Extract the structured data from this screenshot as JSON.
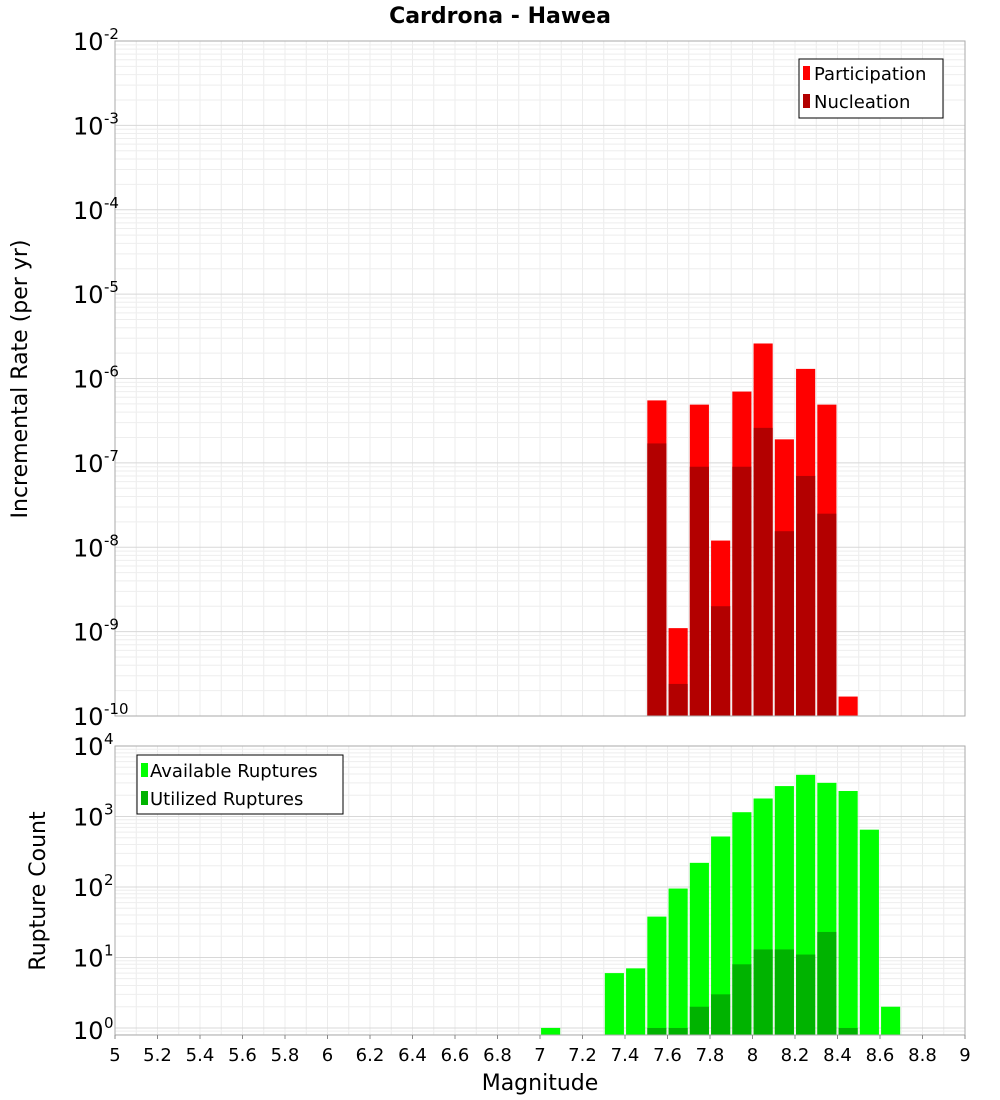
{
  "chart_data": [
    {
      "type": "bar",
      "title": "Cardrona - Hawea",
      "xlabel": "Magnitude",
      "ylabel": "Incremental Rate (per yr)",
      "yscale": "log",
      "xlim": [
        5,
        9
      ],
      "ylim_exponents": [
        -10,
        -2
      ],
      "ytick_base": "10",
      "ytick_exponents": [
        "-10",
        "-9",
        "-8",
        "-7",
        "-6",
        "-5",
        "-4",
        "-3",
        "-2"
      ],
      "legend_position": "top-right",
      "grid": true,
      "series": [
        {
          "name": "Participation",
          "color": "#ff0000",
          "x": [
            7.55,
            7.65,
            7.75,
            7.85,
            7.95,
            8.05,
            8.15,
            8.25,
            8.35,
            8.45
          ],
          "values": [
            5.5e-07,
            1.1e-09,
            4.9e-07,
            1.2e-08,
            7e-07,
            2.6e-06,
            1.9e-07,
            1.3e-06,
            4.9e-07,
            1.7e-10
          ]
        },
        {
          "name": "Nucleation",
          "color": "#b30000",
          "x": [
            7.55,
            7.65,
            7.75,
            7.85,
            7.95,
            8.05,
            8.15,
            8.25,
            8.35
          ],
          "values": [
            1.7e-07,
            2.4e-10,
            9e-08,
            2e-09,
            9e-08,
            2.6e-07,
            1.55e-08,
            7e-08,
            2.5e-08
          ]
        }
      ]
    },
    {
      "type": "bar",
      "title": "",
      "xlabel": "Magnitude",
      "ylabel": "Rupture Count",
      "yscale": "log",
      "xlim": [
        5,
        9
      ],
      "ylim_exponents": [
        -0.1,
        4
      ],
      "ytick_base": "10",
      "ytick_exponents": [
        "0",
        "1",
        "2",
        "3",
        "4"
      ],
      "xticks": [
        "5",
        "5.2",
        "5.4",
        "5.6",
        "5.8",
        "6",
        "6.2",
        "6.4",
        "6.6",
        "6.8",
        "7",
        "7.2",
        "7.4",
        "7.6",
        "7.8",
        "8",
        "8.2",
        "8.4",
        "8.6",
        "8.8",
        "9"
      ],
      "legend_position": "top-left",
      "grid": true,
      "series": [
        {
          "name": "Available Ruptures",
          "color": "#00ff00",
          "x": [
            7.05,
            7.35,
            7.45,
            7.55,
            7.65,
            7.75,
            7.85,
            7.95,
            8.05,
            8.15,
            8.25,
            8.35,
            8.45,
            8.55,
            8.65
          ],
          "values": [
            1,
            6,
            7,
            38,
            95,
            220,
            520,
            1150,
            1800,
            2700,
            3900,
            3000,
            2300,
            650,
            2
          ]
        },
        {
          "name": "Utilized Ruptures",
          "color": "#00b300",
          "x": [
            7.55,
            7.65,
            7.75,
            7.85,
            7.95,
            8.05,
            8.15,
            8.25,
            8.35,
            8.45
          ],
          "values": [
            1,
            1,
            2,
            3,
            8,
            13,
            13,
            11,
            23,
            1
          ]
        }
      ]
    }
  ]
}
